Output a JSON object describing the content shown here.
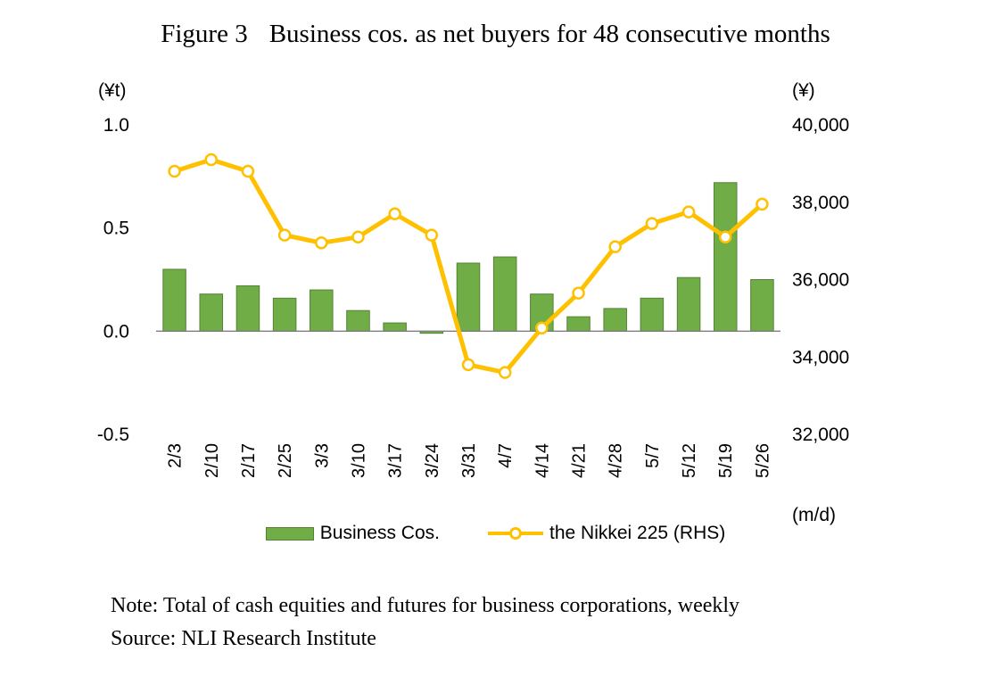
{
  "header": {
    "figure_label": "Figure 3",
    "title": "Business cos. as net buyers for 48 consecutive months"
  },
  "chart_data": {
    "type": "combo",
    "title": "Business cos. as net buyers for 48 consecutive months",
    "categories": [
      "2/3",
      "2/10",
      "2/17",
      "2/25",
      "3/3",
      "3/10",
      "3/17",
      "3/24",
      "3/31",
      "4/7",
      "4/14",
      "4/21",
      "4/28",
      "5/7",
      "5/12",
      "5/19",
      "5/26"
    ],
    "series": [
      {
        "name": "Business Cos.",
        "type": "bar",
        "axis": "left",
        "color": "#70AD47",
        "border_color": "#548235",
        "values": [
          0.3,
          0.18,
          0.22,
          0.16,
          0.2,
          0.1,
          0.04,
          -0.01,
          0.33,
          0.36,
          0.18,
          0.07,
          0.11,
          0.16,
          0.26,
          0.72,
          0.25
        ]
      },
      {
        "name": "the Nikkei 225 (RHS)",
        "type": "line",
        "axis": "right",
        "color": "#FFC000",
        "marker": "circle-open",
        "values": [
          38800,
          39100,
          38800,
          37150,
          36950,
          37100,
          37700,
          37150,
          33800,
          33600,
          34750,
          35650,
          36850,
          37450,
          37750,
          37100,
          37950
        ]
      }
    ],
    "left_axis": {
      "unit": "(¥t)",
      "min": -0.5,
      "max": 1.0,
      "ticks": [
        1.0,
        0.5,
        0.0,
        -0.5
      ],
      "tick_labels": [
        "1.0",
        "0.5",
        "0.0",
        "-0.5"
      ]
    },
    "right_axis": {
      "unit": "(¥)",
      "min": 32000,
      "max": 40000,
      "ticks": [
        40000,
        38000,
        36000,
        34000,
        32000
      ],
      "tick_labels": [
        "40,000",
        "38,000",
        "36,000",
        "34,000",
        "32,000"
      ]
    },
    "x_axis_unit": "(m/d)",
    "grid": false,
    "legend_position": "bottom"
  },
  "footer": {
    "note": "Note: Total of cash equities and futures for business corporations, weekly",
    "source": "Source: NLI Research Institute"
  }
}
